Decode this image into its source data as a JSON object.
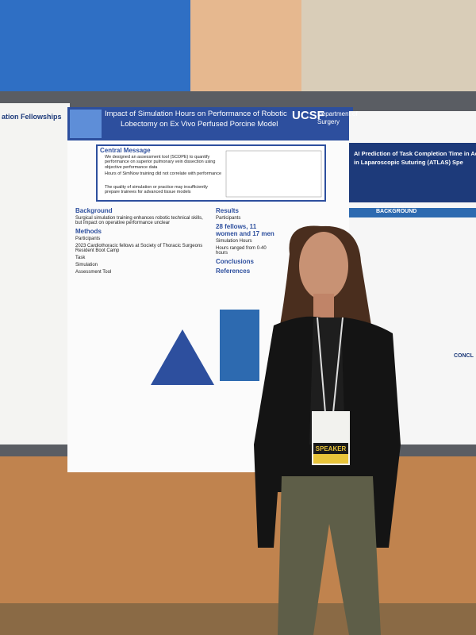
{
  "left_poster": {
    "title": "ation Fellowships"
  },
  "center_poster": {
    "title_lines": [
      "Impact of Simulation Hours on Performance of Robotic",
      "Lobectomy on Ex Vivo Perfused Porcine Model"
    ],
    "logo": "UCSF",
    "department_lines": [
      "Department of",
      "Surgery"
    ],
    "central_message": {
      "heading": "Central Message",
      "bullets": [
        "We designed an assessment tool (SCOPE) to quantify performance on superior pulmonary vein dissection using objective performance data",
        "Hours of SimNow training did not correlate with performance",
        "The quality of simulation or practice may insufficiently prepare trainees for advanced tissue models"
      ]
    },
    "left_column": [
      "Background",
      "Surgical simulation training enhances robotic technical skills, but impact on operative performance unclear",
      "Methods",
      "Participants",
      "2023 Cardiothoracic fellows at Society of Thoracic Surgeons Resident Boot Camp",
      "Task",
      "Simulation",
      "Assessment Tool"
    ],
    "right_column": [
      "Results",
      "Participants",
      "28 fellows, 11 women and 17 men",
      "Simulation Hours",
      "Hours ranged from 0-40 hours",
      "Conclusions",
      "References"
    ]
  },
  "right_poster": {
    "title_lines": [
      "AI Prediction of Task Completion Time in Ad",
      "in Laparoscopic Suturing (ATLAS) Spe"
    ],
    "sections": [
      "BACKGROUND",
      "CONCL"
    ]
  },
  "badge": {
    "label": "SPEAKER"
  }
}
